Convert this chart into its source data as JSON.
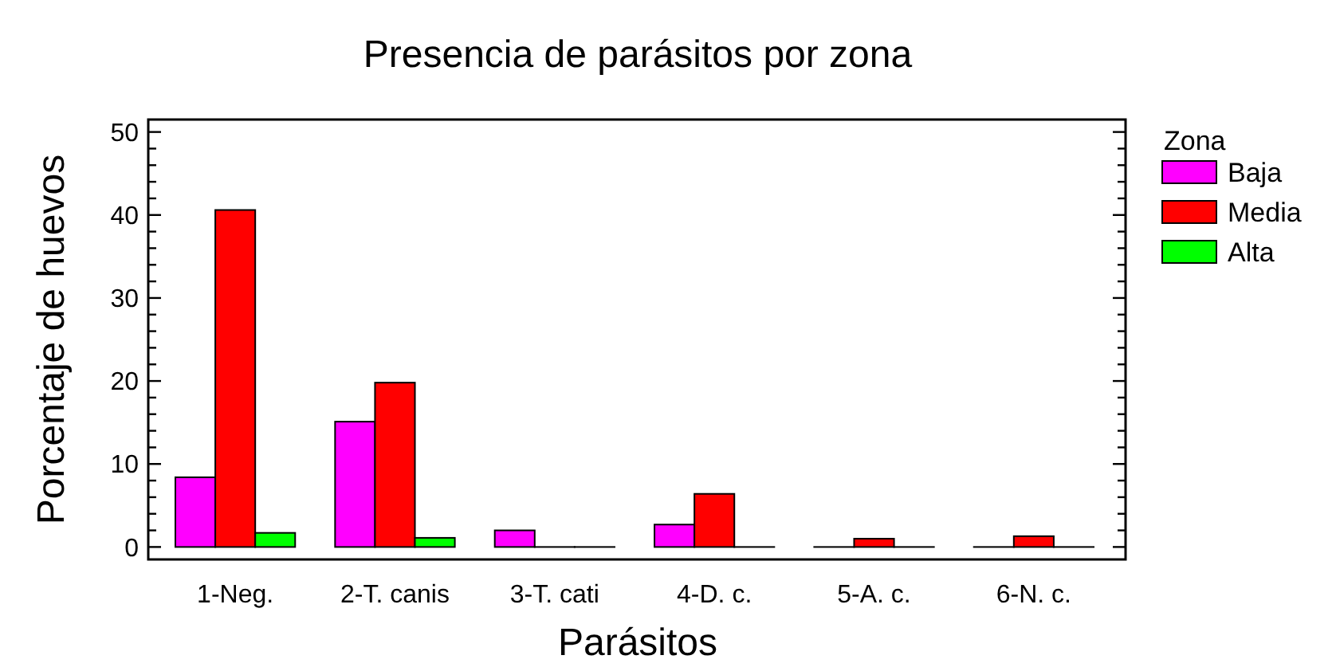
{
  "chart_data": {
    "type": "bar",
    "title": "Presencia de parásitos por zona",
    "xlabel": "Parásitos",
    "ylabel": "Porcentaje de huevos",
    "legend_title": "Zona",
    "legend": "right",
    "categories": [
      "1-Neg.",
      "2-T. canis",
      "3-T. cati",
      "4-D. c.",
      "5-A. c.",
      "6-N. c."
    ],
    "series": [
      {
        "name": "Baja",
        "color": "#ff00ff",
        "values": [
          8.4,
          15.1,
          2.0,
          2.7,
          0,
          0
        ]
      },
      {
        "name": "Media",
        "color": "#ff0000",
        "values": [
          40.6,
          19.8,
          0,
          6.4,
          1.0,
          1.3
        ]
      },
      {
        "name": "Alta",
        "color": "#00ff00",
        "values": [
          1.7,
          1.1,
          0,
          0,
          0,
          0
        ]
      }
    ],
    "ylim": [
      -1.5,
      51.5
    ],
    "yticks": [
      0,
      {
        "value": 2,
        "label": null
      },
      {
        "value": 4,
        "label": null
      },
      {
        "value": 6,
        "label": null
      },
      {
        "value": 8,
        "label": null
      },
      10,
      {
        "value": 12,
        "label": null
      },
      {
        "value": 14,
        "label": null
      },
      {
        "value": 16,
        "label": null
      },
      {
        "value": 18,
        "label": null
      },
      20,
      {
        "value": 22,
        "label": null
      },
      {
        "value": 24,
        "label": null
      },
      {
        "value": 26,
        "label": null
      },
      {
        "value": 28,
        "label": null
      },
      30,
      {
        "value": 32,
        "label": null
      },
      {
        "value": 34,
        "label": null
      },
      {
        "value": 36,
        "label": null
      },
      {
        "value": 38,
        "label": null
      },
      40,
      {
        "value": 42,
        "label": null
      },
      {
        "value": 44,
        "label": null
      },
      {
        "value": 46,
        "label": null
      },
      {
        "value": 48,
        "label": null
      },
      50
    ],
    "grid": false
  }
}
